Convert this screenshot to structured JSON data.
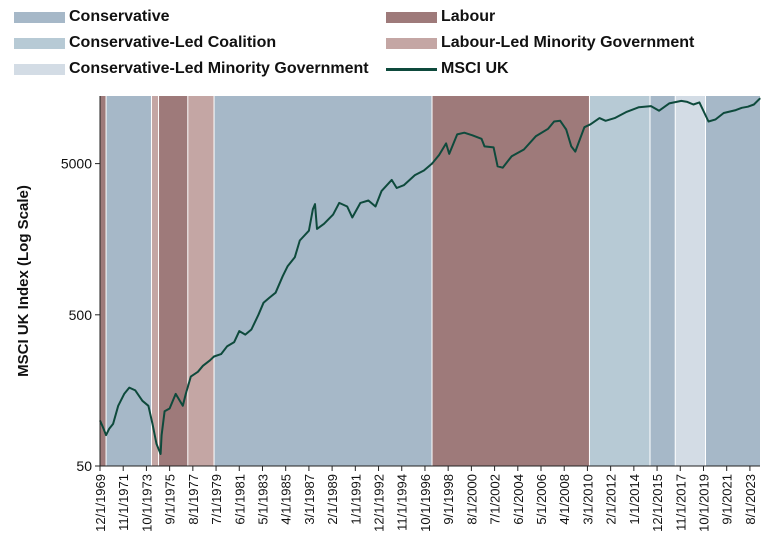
{
  "chart_data": {
    "type": "line",
    "title": "",
    "xlabel": "",
    "ylabel": "MSCI UK Index (Log Scale)",
    "y_scale": "log",
    "ylim": [
      50,
      14000
    ],
    "xlim": [
      "1969-12-01",
      "2024-06-01"
    ],
    "y_ticks": [
      50,
      500,
      5000
    ],
    "x_tick_labels": [
      "12/1/1969",
      "11/1/1971",
      "10/1/1973",
      "9/1/1975",
      "8/1/1977",
      "7/1/1979",
      "6/1/1981",
      "5/1/1983",
      "4/1/1985",
      "3/1/1987",
      "2/1/1989",
      "1/1/1991",
      "12/1/1992",
      "11/1/1994",
      "10/1/1996",
      "9/1/1998",
      "8/1/2000",
      "7/1/2002",
      "6/1/2004",
      "5/1/2006",
      "4/1/2008",
      "3/1/2010",
      "2/1/2012",
      "1/1/2014",
      "12/1/2015",
      "11/1/2017",
      "10/1/2019",
      "9/1/2021",
      "8/1/2023"
    ],
    "legend_position": "top",
    "grid": false,
    "legend": [
      {
        "name": "Conservative",
        "kind": "area",
        "color": "#a6b8c8"
      },
      {
        "name": "Labour",
        "kind": "area",
        "color": "#9e7a7a"
      },
      {
        "name": "Conservative-Led Coalition",
        "kind": "area",
        "color": "#b7cad5"
      },
      {
        "name": "Labour-Led Minority Government",
        "kind": "area",
        "color": "#c4a6a4"
      },
      {
        "name": "Conservative-Led Minority Government",
        "kind": "area",
        "color": "#d3dce5"
      },
      {
        "name": "MSCI UK",
        "kind": "line",
        "color": "#0e4a3c"
      }
    ],
    "regimes": [
      {
        "party": "Labour",
        "start": "1969-12-01",
        "end": "1970-06-01",
        "color": "#9e7a7a"
      },
      {
        "party": "Conservative",
        "start": "1970-06-01",
        "end": "1974-03-01",
        "color": "#a6b8c8"
      },
      {
        "party": "Labour-Led Minority Government",
        "start": "1974-03-01",
        "end": "1974-10-01",
        "color": "#c4a6a4"
      },
      {
        "party": "Labour",
        "start": "1974-10-01",
        "end": "1977-03-01",
        "color": "#9e7a7a"
      },
      {
        "party": "Labour-Led Minority Government",
        "start": "1977-03-01",
        "end": "1979-05-01",
        "color": "#c4a6a4"
      },
      {
        "party": "Conservative",
        "start": "1979-05-01",
        "end": "1997-05-01",
        "color": "#a6b8c8"
      },
      {
        "party": "Labour",
        "start": "1997-05-01",
        "end": "2010-05-01",
        "color": "#9e7a7a"
      },
      {
        "party": "Conservative-Led Coalition",
        "start": "2010-05-01",
        "end": "2015-05-01",
        "color": "#b7cad5"
      },
      {
        "party": "Conservative",
        "start": "2015-05-01",
        "end": "2017-06-01",
        "color": "#a6b8c8"
      },
      {
        "party": "Conservative-Led Minority Government",
        "start": "2017-06-01",
        "end": "2019-12-01",
        "color": "#d3dce5"
      },
      {
        "party": "Conservative",
        "start": "2019-12-01",
        "end": "2024-06-01",
        "color": "#a6b8c8"
      }
    ],
    "series": [
      {
        "name": "MSCI UK",
        "color": "#0e4a3c",
        "points": [
          [
            "1969-12-01",
            100
          ],
          [
            "1970-03-01",
            90
          ],
          [
            "1970-06-01",
            80
          ],
          [
            "1970-09-01",
            88
          ],
          [
            "1971-01-01",
            95
          ],
          [
            "1971-06-01",
            125
          ],
          [
            "1971-12-01",
            150
          ],
          [
            "1972-05-01",
            165
          ],
          [
            "1972-11-01",
            158
          ],
          [
            "1973-06-01",
            135
          ],
          [
            "1973-12-01",
            125
          ],
          [
            "1974-04-01",
            95
          ],
          [
            "1974-08-01",
            70
          ],
          [
            "1974-12-01",
            60
          ],
          [
            "1975-01-01",
            80
          ],
          [
            "1975-04-01",
            115
          ],
          [
            "1975-09-01",
            120
          ],
          [
            "1976-03-01",
            150
          ],
          [
            "1976-10-01",
            125
          ],
          [
            "1977-01-01",
            150
          ],
          [
            "1977-06-01",
            195
          ],
          [
            "1978-01-01",
            210
          ],
          [
            "1978-06-01",
            230
          ],
          [
            "1979-01-01",
            250
          ],
          [
            "1979-05-01",
            265
          ],
          [
            "1979-12-01",
            275
          ],
          [
            "1980-06-01",
            310
          ],
          [
            "1981-01-01",
            330
          ],
          [
            "1981-06-01",
            390
          ],
          [
            "1981-12-01",
            370
          ],
          [
            "1982-06-01",
            400
          ],
          [
            "1983-01-01",
            500
          ],
          [
            "1983-06-01",
            600
          ],
          [
            "1983-12-01",
            650
          ],
          [
            "1984-06-01",
            700
          ],
          [
            "1985-01-01",
            900
          ],
          [
            "1985-06-01",
            1050
          ],
          [
            "1986-01-01",
            1200
          ],
          [
            "1986-06-01",
            1550
          ],
          [
            "1987-03-01",
            1800
          ],
          [
            "1987-07-01",
            2500
          ],
          [
            "1987-09-01",
            2700
          ],
          [
            "1987-11-01",
            1850
          ],
          [
            "1988-06-01",
            2000
          ],
          [
            "1989-03-01",
            2300
          ],
          [
            "1989-09-01",
            2750
          ],
          [
            "1990-05-01",
            2600
          ],
          [
            "1990-10-01",
            2200
          ],
          [
            "1991-06-01",
            2750
          ],
          [
            "1992-02-01",
            2850
          ],
          [
            "1992-09-01",
            2600
          ],
          [
            "1993-03-01",
            3300
          ],
          [
            "1994-01-01",
            3900
          ],
          [
            "1994-06-01",
            3450
          ],
          [
            "1995-01-01",
            3600
          ],
          [
            "1995-12-01",
            4200
          ],
          [
            "1996-09-01",
            4500
          ],
          [
            "1997-05-01",
            5000
          ],
          [
            "1997-12-01",
            5700
          ],
          [
            "1998-07-01",
            6800
          ],
          [
            "1998-10-01",
            5800
          ],
          [
            "1999-06-01",
            7800
          ],
          [
            "2000-01-01",
            8000
          ],
          [
            "2000-09-01",
            7700
          ],
          [
            "2001-06-01",
            7300
          ],
          [
            "2001-09-01",
            6500
          ],
          [
            "2002-06-01",
            6400
          ],
          [
            "2002-10-01",
            4800
          ],
          [
            "2003-03-01",
            4700
          ],
          [
            "2003-12-01",
            5600
          ],
          [
            "2004-12-01",
            6200
          ],
          [
            "2005-12-01",
            7600
          ],
          [
            "2006-12-01",
            8500
          ],
          [
            "2007-06-01",
            9500
          ],
          [
            "2007-12-01",
            9600
          ],
          [
            "2008-06-01",
            8400
          ],
          [
            "2008-11-01",
            6500
          ],
          [
            "2009-03-01",
            6000
          ],
          [
            "2009-12-01",
            8700
          ],
          [
            "2010-06-01",
            9100
          ],
          [
            "2011-03-01",
            10000
          ],
          [
            "2011-09-01",
            9600
          ],
          [
            "2012-06-01",
            10000
          ],
          [
            "2013-06-01",
            11000
          ],
          [
            "2014-06-01",
            11800
          ],
          [
            "2015-06-01",
            12000
          ],
          [
            "2016-02-01",
            11200
          ],
          [
            "2016-12-01",
            12500
          ],
          [
            "2017-12-01",
            13000
          ],
          [
            "2018-06-01",
            12800
          ],
          [
            "2018-12-01",
            12300
          ],
          [
            "2019-06-01",
            12700
          ],
          [
            "2020-03-01",
            9500
          ],
          [
            "2020-10-01",
            9800
          ],
          [
            "2021-06-01",
            10800
          ],
          [
            "2022-06-01",
            11300
          ],
          [
            "2022-12-01",
            11700
          ],
          [
            "2023-06-01",
            11900
          ],
          [
            "2023-12-01",
            12300
          ],
          [
            "2024-06-01",
            13500
          ]
        ]
      }
    ]
  }
}
